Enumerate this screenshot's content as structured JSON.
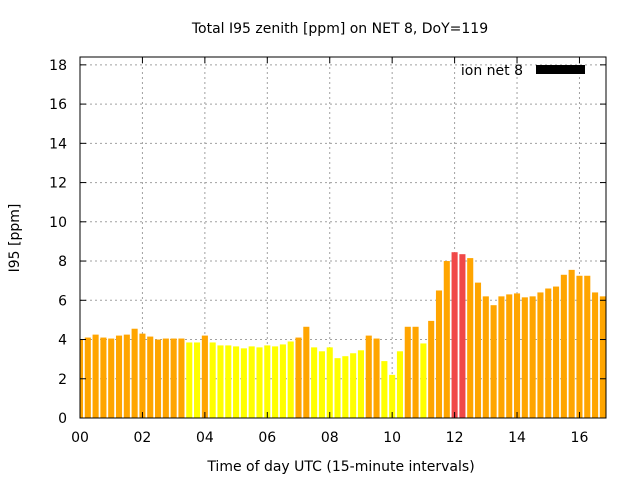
{
  "chart_data": {
    "type": "bar",
    "title": "Total I95 zenith [ppm] on NET 8, DoY=119",
    "xlabel": "Time of day UTC (15-minute intervals)",
    "ylabel": "I95 [ppm]",
    "xlim": [
      0,
      16.85
    ],
    "ylim": [
      0,
      18.4
    ],
    "grid": true,
    "legend": {
      "label": "ion net 8",
      "placement": "top-right",
      "color": "#000000"
    },
    "x_ticks": [
      {
        "v": 0,
        "label": "00"
      },
      {
        "v": 2,
        "label": "02"
      },
      {
        "v": 4,
        "label": "04"
      },
      {
        "v": 6,
        "label": "06"
      },
      {
        "v": 8,
        "label": "08"
      },
      {
        "v": 10,
        "label": "10"
      },
      {
        "v": 12,
        "label": "12"
      },
      {
        "v": 14,
        "label": "14"
      },
      {
        "v": 16,
        "label": "16"
      }
    ],
    "y_ticks": [
      {
        "v": 0,
        "label": "0"
      },
      {
        "v": 2,
        "label": "2"
      },
      {
        "v": 4,
        "label": "4"
      },
      {
        "v": 6,
        "label": "6"
      },
      {
        "v": 8,
        "label": "8"
      },
      {
        "v": 10,
        "label": "10"
      },
      {
        "v": 12,
        "label": "12"
      },
      {
        "v": 14,
        "label": "14"
      },
      {
        "v": 16,
        "label": "16"
      },
      {
        "v": 18,
        "label": "18"
      }
    ],
    "interval_hours": 0.25,
    "color_levels": [
      {
        "below": 4.0,
        "color": "#ffff00"
      },
      {
        "below": 8.2,
        "color": "#ffa500"
      },
      {
        "below": 100,
        "color": "#f04848"
      }
    ],
    "values": [
      4.0,
      4.1,
      4.25,
      4.1,
      4.05,
      4.2,
      4.25,
      4.55,
      4.3,
      4.15,
      4.0,
      4.05,
      4.05,
      4.05,
      3.85,
      3.85,
      4.2,
      3.85,
      3.7,
      3.7,
      3.65,
      3.55,
      3.65,
      3.6,
      3.7,
      3.65,
      3.75,
      3.9,
      4.1,
      4.65,
      3.6,
      3.4,
      3.6,
      3.05,
      3.15,
      3.3,
      3.45,
      4.2,
      4.05,
      2.9,
      2.2,
      3.4,
      4.65,
      4.65,
      3.8,
      4.95,
      6.5,
      8.0,
      8.45,
      8.35,
      8.15,
      6.9,
      6.2,
      5.75,
      6.2,
      6.3,
      6.35,
      6.15,
      6.2,
      6.4,
      6.6,
      6.7,
      7.3,
      7.55,
      7.25,
      7.25,
      6.4,
      6.2
    ]
  }
}
